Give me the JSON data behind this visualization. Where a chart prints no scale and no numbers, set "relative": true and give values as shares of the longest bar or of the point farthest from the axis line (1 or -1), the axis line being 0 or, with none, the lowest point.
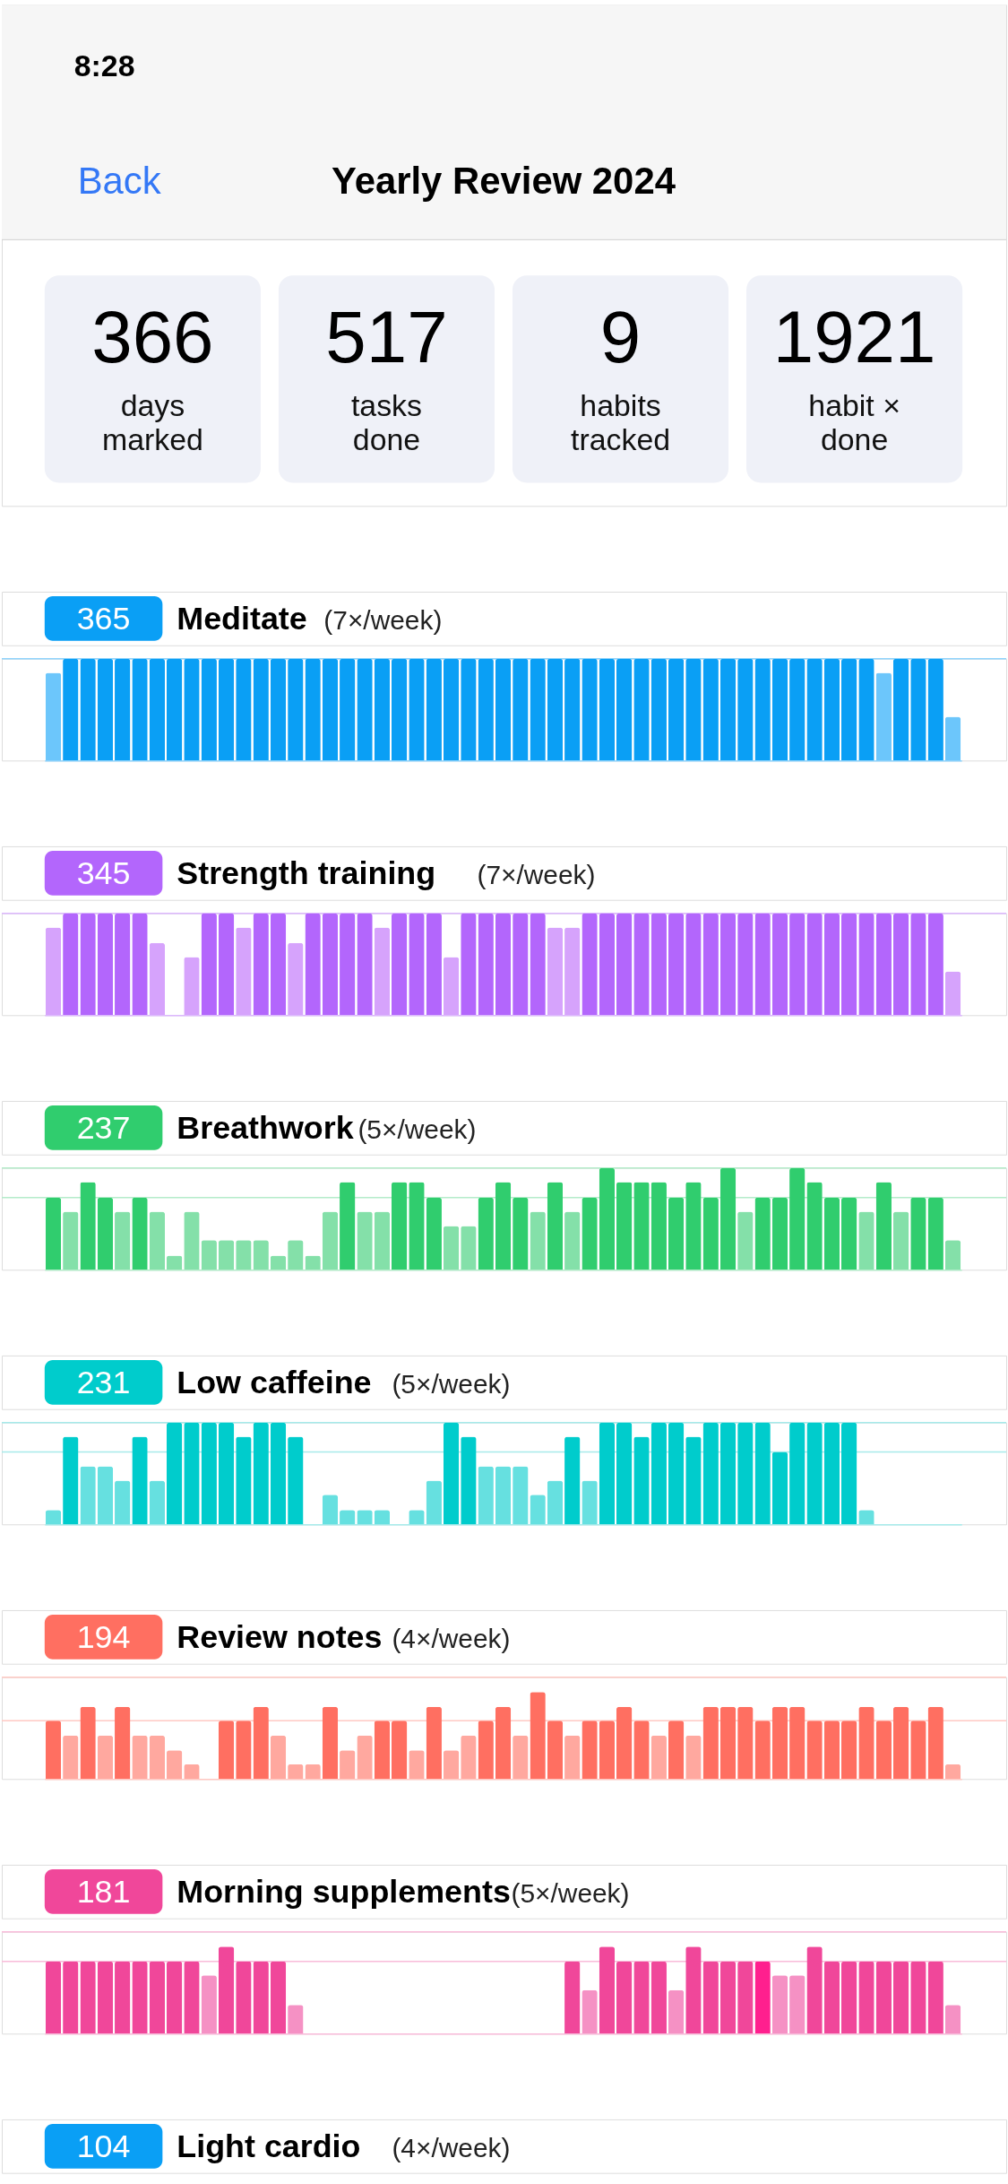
{
  "chart_data": [
    {
      "type": "other",
      "title": "Yearly Review 2024",
      "annotations": [
        "8:28",
        "Back"
      ],
      "categories": [
        "days marked",
        "tasks done",
        "habits tracked",
        "habit × done"
      ],
      "values": [
        366,
        517,
        9,
        1921
      ],
      "data_labels": true
    },
    {
      "type": "bar",
      "title": "Meditate",
      "subtitle": "(7×/week)",
      "annotations": [
        "365"
      ],
      "relative": true,
      "categories": [
        null,
        null,
        null,
        null,
        null,
        null,
        null,
        null,
        null,
        null,
        null,
        null,
        null,
        null,
        null,
        null,
        null,
        null,
        null,
        null,
        null,
        null,
        null,
        null,
        null,
        null,
        null,
        null,
        null,
        null,
        null,
        null,
        null,
        null,
        null,
        null,
        null,
        null,
        null,
        null,
        null,
        null,
        null,
        null,
        null,
        null,
        null,
        null,
        null,
        null,
        null,
        null,
        null
      ],
      "series": [
        {
          "color": "#0a9ff5",
          "values": [
            0.86,
            1,
            1,
            1,
            1,
            1,
            1,
            1,
            1,
            1,
            1,
            1,
            1,
            1,
            1,
            1,
            1,
            1,
            1,
            1,
            1,
            1,
            1,
            1,
            1,
            1,
            1,
            1,
            1,
            1,
            1,
            1,
            1,
            1,
            1,
            1,
            1,
            1,
            1,
            1,
            1,
            1,
            1,
            1,
            1,
            1,
            1,
            1,
            0.86,
            1,
            1,
            1,
            0.43
          ],
          "colors": [
            "#6cc6fb",
            "#0a9ff5",
            "#0a9ff5",
            "#0a9ff5",
            "#0a9ff5",
            "#0a9ff5",
            "#0a9ff5",
            "#0a9ff5",
            "#0a9ff5",
            "#0a9ff5",
            "#0a9ff5",
            "#0a9ff5",
            "#0a9ff5",
            "#0a9ff5",
            "#0a9ff5",
            "#0a9ff5",
            "#0a9ff5",
            "#0a9ff5",
            "#0a9ff5",
            "#0a9ff5",
            "#0a9ff5",
            "#0a9ff5",
            "#0a9ff5",
            "#0a9ff5",
            "#0a9ff5",
            "#0a9ff5",
            "#0a9ff5",
            "#0a9ff5",
            "#0a9ff5",
            "#0a9ff5",
            "#0a9ff5",
            "#0a9ff5",
            "#0a9ff5",
            "#0a9ff5",
            "#0a9ff5",
            "#0a9ff5",
            "#0a9ff5",
            "#0a9ff5",
            "#0a9ff5",
            "#0a9ff5",
            "#0a9ff5",
            "#0a9ff5",
            "#0a9ff5",
            "#0a9ff5",
            "#0a9ff5",
            "#0a9ff5",
            "#0a9ff5",
            "#0a9ff5",
            "#6cc6fb",
            "#0a9ff5",
            "#0a9ff5",
            "#0a9ff5",
            "#6cc6fb"
          ]
        }
      ],
      "ref_lines": [
        {
          "axis": "y",
          "value": 1,
          "color": "#8fd3fb"
        }
      ]
    },
    {
      "type": "bar",
      "title": "Strength training",
      "subtitle": "(7×/week)",
      "annotations": [
        "345"
      ],
      "relative": true,
      "categories": [
        null,
        null,
        null,
        null,
        null,
        null,
        null,
        null,
        null,
        null,
        null,
        null,
        null,
        null,
        null,
        null,
        null,
        null,
        null,
        null,
        null,
        null,
        null,
        null,
        null,
        null,
        null,
        null,
        null,
        null,
        null,
        null,
        null,
        null,
        null,
        null,
        null,
        null,
        null,
        null,
        null,
        null,
        null,
        null,
        null,
        null,
        null,
        null,
        null,
        null,
        null,
        null,
        null
      ],
      "series": [
        {
          "color": "#b366fc",
          "values": [
            0.86,
            1,
            1,
            1,
            1,
            1,
            0.71,
            0,
            0.57,
            1,
            1,
            0.86,
            1,
            1,
            0.71,
            1,
            1,
            1,
            1,
            0.86,
            1,
            1,
            1,
            0.57,
            1,
            1,
            1,
            1,
            1,
            0.86,
            0.86,
            1,
            1,
            1,
            1,
            1,
            1,
            1,
            1,
            1,
            1,
            1,
            1,
            1,
            1,
            1,
            1,
            1,
            1,
            1,
            1,
            1,
            0.43
          ],
          "colors": [
            "#d6a3fc",
            "#b366fc",
            "#b366fc",
            "#b366fc",
            "#b366fc",
            "#b366fc",
            "#d6a3fc",
            "#d6a3fc",
            "#d6a3fc",
            "#b366fc",
            "#b366fc",
            "#d6a3fc",
            "#b366fc",
            "#b366fc",
            "#d6a3fc",
            "#b366fc",
            "#b366fc",
            "#b366fc",
            "#b366fc",
            "#d6a3fc",
            "#b366fc",
            "#b366fc",
            "#b366fc",
            "#d6a3fc",
            "#b366fc",
            "#b366fc",
            "#b366fc",
            "#b366fc",
            "#b366fc",
            "#d6a3fc",
            "#d6a3fc",
            "#b366fc",
            "#b366fc",
            "#b366fc",
            "#b366fc",
            "#b366fc",
            "#b366fc",
            "#b366fc",
            "#b366fc",
            "#b366fc",
            "#b366fc",
            "#b366fc",
            "#b366fc",
            "#b366fc",
            "#b366fc",
            "#b366fc",
            "#b366fc",
            "#b366fc",
            "#b366fc",
            "#b366fc",
            "#b366fc",
            "#b366fc",
            "#d6a3fc"
          ]
        }
      ],
      "ref_lines": [
        {
          "axis": "y",
          "value": 1,
          "color": "#dcb8fd"
        }
      ]
    },
    {
      "type": "bar",
      "title": "Breathwork",
      "subtitle": "(5×/week)",
      "annotations": [
        "237"
      ],
      "relative": true,
      "categories": [
        null,
        null,
        null,
        null,
        null,
        null,
        null,
        null,
        null,
        null,
        null,
        null,
        null,
        null,
        null,
        null,
        null,
        null,
        null,
        null,
        null,
        null,
        null,
        null,
        null,
        null,
        null,
        null,
        null,
        null,
        null,
        null,
        null,
        null,
        null,
        null,
        null,
        null,
        null,
        null,
        null,
        null,
        null,
        null,
        null,
        null,
        null,
        null,
        null,
        null,
        null,
        null,
        null
      ],
      "series": [
        {
          "color": "#30cd6e",
          "values": [
            0.71,
            0.57,
            0.86,
            0.71,
            0.57,
            0.71,
            0.57,
            0.14,
            0.57,
            0.29,
            0.29,
            0.29,
            0.29,
            0.14,
            0.29,
            0.14,
            0.57,
            0.86,
            0.57,
            0.57,
            0.86,
            0.86,
            0.71,
            0.43,
            0.43,
            0.71,
            0.86,
            0.71,
            0.57,
            0.86,
            0.57,
            0.71,
            1,
            0.86,
            0.86,
            0.86,
            0.71,
            0.86,
            0.71,
            1,
            0.57,
            0.71,
            0.71,
            1,
            0.86,
            0.71,
            0.71,
            0.57,
            0.86,
            0.57,
            0.71,
            0.71,
            0.29
          ],
          "colors": [
            "#30cd6e",
            "#84e0a9",
            "#30cd6e",
            "#30cd6e",
            "#84e0a9",
            "#30cd6e",
            "#84e0a9",
            "#84e0a9",
            "#84e0a9",
            "#84e0a9",
            "#84e0a9",
            "#84e0a9",
            "#84e0a9",
            "#84e0a9",
            "#84e0a9",
            "#84e0a9",
            "#84e0a9",
            "#30cd6e",
            "#84e0a9",
            "#84e0a9",
            "#30cd6e",
            "#30cd6e",
            "#30cd6e",
            "#84e0a9",
            "#84e0a9",
            "#30cd6e",
            "#30cd6e",
            "#30cd6e",
            "#84e0a9",
            "#30cd6e",
            "#84e0a9",
            "#30cd6e",
            "#30cd6e",
            "#30cd6e",
            "#30cd6e",
            "#30cd6e",
            "#30cd6e",
            "#30cd6e",
            "#30cd6e",
            "#30cd6e",
            "#84e0a9",
            "#30cd6e",
            "#30cd6e",
            "#30cd6e",
            "#30cd6e",
            "#30cd6e",
            "#30cd6e",
            "#84e0a9",
            "#30cd6e",
            "#84e0a9",
            "#30cd6e",
            "#30cd6e",
            "#84e0a9"
          ]
        }
      ],
      "ref_lines": [
        {
          "axis": "y",
          "value": 1,
          "color": "#b4ecca"
        },
        {
          "axis": "y",
          "value": 0.71,
          "color": "#b4ecca"
        }
      ]
    },
    {
      "type": "bar",
      "title": "Low caffeine",
      "subtitle": "(5×/week)",
      "annotations": [
        "231"
      ],
      "relative": true,
      "categories": [
        null,
        null,
        null,
        null,
        null,
        null,
        null,
        null,
        null,
        null,
        null,
        null,
        null,
        null,
        null,
        null,
        null,
        null,
        null,
        null,
        null,
        null,
        null,
        null,
        null,
        null,
        null,
        null,
        null,
        null,
        null,
        null,
        null,
        null,
        null,
        null,
        null,
        null,
        null,
        null,
        null,
        null,
        null,
        null,
        null,
        null,
        null,
        null,
        null,
        null,
        null,
        null,
        null
      ],
      "series": [
        {
          "color": "#00cccc",
          "values": [
            0.14,
            0.86,
            0.57,
            0.57,
            0.43,
            0.86,
            0.43,
            1,
            1,
            1,
            1,
            0.86,
            1,
            1,
            0.86,
            0,
            0.29,
            0.14,
            0.14,
            0.14,
            0,
            0.14,
            0.43,
            1,
            0.86,
            0.57,
            0.57,
            0.57,
            0.29,
            0.43,
            0.86,
            0.43,
            1,
            1,
            0.86,
            1,
            1,
            0.86,
            1,
            1,
            1,
            1,
            0.71,
            1,
            1,
            1,
            1,
            0.14,
            0,
            0,
            0,
            0,
            0
          ],
          "colors": [
            "#66e0e0",
            "#00cccc",
            "#66e0e0",
            "#66e0e0",
            "#66e0e0",
            "#00cccc",
            "#66e0e0",
            "#00cccc",
            "#00cccc",
            "#00cccc",
            "#00cccc",
            "#00cccc",
            "#00cccc",
            "#00cccc",
            "#00cccc",
            "#66e0e0",
            "#66e0e0",
            "#66e0e0",
            "#66e0e0",
            "#66e0e0",
            "#66e0e0",
            "#66e0e0",
            "#66e0e0",
            "#00cccc",
            "#00cccc",
            "#66e0e0",
            "#66e0e0",
            "#66e0e0",
            "#66e0e0",
            "#66e0e0",
            "#00cccc",
            "#66e0e0",
            "#00cccc",
            "#00cccc",
            "#00cccc",
            "#00cccc",
            "#00cccc",
            "#00cccc",
            "#00cccc",
            "#00cccc",
            "#00cccc",
            "#00cccc",
            "#00cccc",
            "#00cccc",
            "#00cccc",
            "#00cccc",
            "#00cccc",
            "#66e0e0",
            "#66e0e0",
            "#66e0e0",
            "#66e0e0",
            "#66e0e0",
            "#66e0e0"
          ]
        }
      ],
      "ref_lines": [
        {
          "axis": "y",
          "value": 1,
          "color": "#a6eaea"
        },
        {
          "axis": "y",
          "value": 0.71,
          "color": "#a6eaea"
        }
      ]
    },
    {
      "type": "bar",
      "title": "Review notes",
      "subtitle": "(4×/week)",
      "annotations": [
        "194"
      ],
      "relative": true,
      "categories": [
        null,
        null,
        null,
        null,
        null,
        null,
        null,
        null,
        null,
        null,
        null,
        null,
        null,
        null,
        null,
        null,
        null,
        null,
        null,
        null,
        null,
        null,
        null,
        null,
        null,
        null,
        null,
        null,
        null,
        null,
        null,
        null,
        null,
        null,
        null,
        null,
        null,
        null,
        null,
        null,
        null,
        null,
        null,
        null,
        null,
        null,
        null,
        null,
        null,
        null,
        null,
        null,
        null
      ],
      "series": [
        {
          "color": "#ff6f61",
          "values": [
            0.67,
            0.5,
            0.83,
            0.5,
            0.83,
            0.5,
            0.5,
            0.33,
            0.17,
            0,
            0.67,
            0.67,
            0.83,
            0.5,
            0.17,
            0.17,
            0.83,
            0.33,
            0.5,
            0.67,
            0.67,
            0.33,
            0.83,
            0.33,
            0.5,
            0.67,
            0.83,
            0.5,
            1,
            0.67,
            0.5,
            0.67,
            0.67,
            0.83,
            0.67,
            0.5,
            0.67,
            0.5,
            0.83,
            0.83,
            0.83,
            0.67,
            0.83,
            0.83,
            0.67,
            0.67,
            0.67,
            0.83,
            0.67,
            0.83,
            0.67,
            0.83,
            0.17
          ],
          "colors": [
            "#ff6f61",
            "#ffa89f",
            "#ff6f61",
            "#ffa89f",
            "#ff6f61",
            "#ffa89f",
            "#ffa89f",
            "#ffa89f",
            "#ffa89f",
            "#ffa89f",
            "#ff6f61",
            "#ff6f61",
            "#ff6f61",
            "#ffa89f",
            "#ffa89f",
            "#ffa89f",
            "#ff6f61",
            "#ffa89f",
            "#ffa89f",
            "#ff6f61",
            "#ff6f61",
            "#ffa89f",
            "#ff6f61",
            "#ffa89f",
            "#ffa89f",
            "#ff6f61",
            "#ff6f61",
            "#ffa89f",
            "#ff6f61",
            "#ff6f61",
            "#ffa89f",
            "#ff6f61",
            "#ff6f61",
            "#ff6f61",
            "#ff6f61",
            "#ffa89f",
            "#ff6f61",
            "#ffa89f",
            "#ff6f61",
            "#ff6f61",
            "#ff6f61",
            "#ff6f61",
            "#ff6f61",
            "#ff6f61",
            "#ff6f61",
            "#ff6f61",
            "#ff6f61",
            "#ff6f61",
            "#ff6f61",
            "#ff6f61",
            "#ff6f61",
            "#ff6f61",
            "#ffa89f"
          ]
        }
      ],
      "ref_lines": [
        {
          "axis": "y",
          "value": 1.17,
          "color": "#ffc9c3"
        },
        {
          "axis": "y",
          "value": 0.67,
          "color": "#ffc9c3"
        }
      ]
    },
    {
      "type": "bar",
      "title": "Morning supplements",
      "subtitle": "(5×/week)",
      "annotations": [
        "181"
      ],
      "relative": true,
      "categories": [
        null,
        null,
        null,
        null,
        null,
        null,
        null,
        null,
        null,
        null,
        null,
        null,
        null,
        null,
        null,
        null,
        null,
        null,
        null,
        null,
        null,
        null,
        null,
        null,
        null,
        null,
        null,
        null,
        null,
        null,
        null,
        null,
        null,
        null,
        null,
        null,
        null,
        null,
        null,
        null,
        null,
        null,
        null,
        null,
        null,
        null,
        null,
        null,
        null,
        null,
        null,
        null,
        null
      ],
      "series": [
        {
          "color": "#f0479a",
          "values": [
            0.83,
            0.83,
            0.83,
            0.83,
            0.83,
            0.83,
            0.83,
            0.83,
            0.83,
            0.67,
            1,
            0.83,
            0.83,
            0.83,
            0.33,
            0,
            0,
            0,
            0,
            0,
            0,
            0,
            0,
            0,
            0,
            0,
            0,
            0,
            0,
            0,
            0.83,
            0.5,
            1,
            0.83,
            0.83,
            0.83,
            0.5,
            1,
            0.83,
            0.83,
            0.83,
            0.83,
            0.67,
            0.67,
            1,
            0.83,
            0.83,
            0.83,
            0.83,
            0.83,
            0.83,
            0.83,
            0.33
          ],
          "colors": [
            "#f0479a",
            "#f0479a",
            "#f0479a",
            "#f0479a",
            "#f0479a",
            "#f0479a",
            "#f0479a",
            "#f0479a",
            "#f0479a",
            "#f591c4",
            "#f0479a",
            "#f0479a",
            "#f0479a",
            "#f0479a",
            "#f591c4",
            "#f591c4",
            "#f591c4",
            "#f591c4",
            "#f591c4",
            "#f591c4",
            "#f591c4",
            "#f591c4",
            "#f591c4",
            "#f591c4",
            "#f591c4",
            "#f591c4",
            "#f591c4",
            "#f591c4",
            "#f591c4",
            "#f591c4",
            "#f0479a",
            "#f591c4",
            "#f0479a",
            "#f0479a",
            "#f0479a",
            "#f0479a",
            "#f591c4",
            "#f0479a",
            "#f0479a",
            "#f0479a",
            "#f0479a",
            "#ff1f8e",
            "#f591c4",
            "#f591c4",
            "#f0479a",
            "#f0479a",
            "#f0479a",
            "#f0479a",
            "#f0479a",
            "#f0479a",
            "#f0479a",
            "#f0479a",
            "#f591c4"
          ]
        }
      ],
      "ref_lines": [
        {
          "axis": "y",
          "value": 1.17,
          "color": "#f9bcda"
        },
        {
          "axis": "y",
          "value": 0.83,
          "color": "#f9bcda"
        }
      ]
    },
    {
      "type": "other",
      "title": "Light cardio",
      "subtitle": "(4×/week)",
      "annotations": [
        "104"
      ]
    }
  ]
}
